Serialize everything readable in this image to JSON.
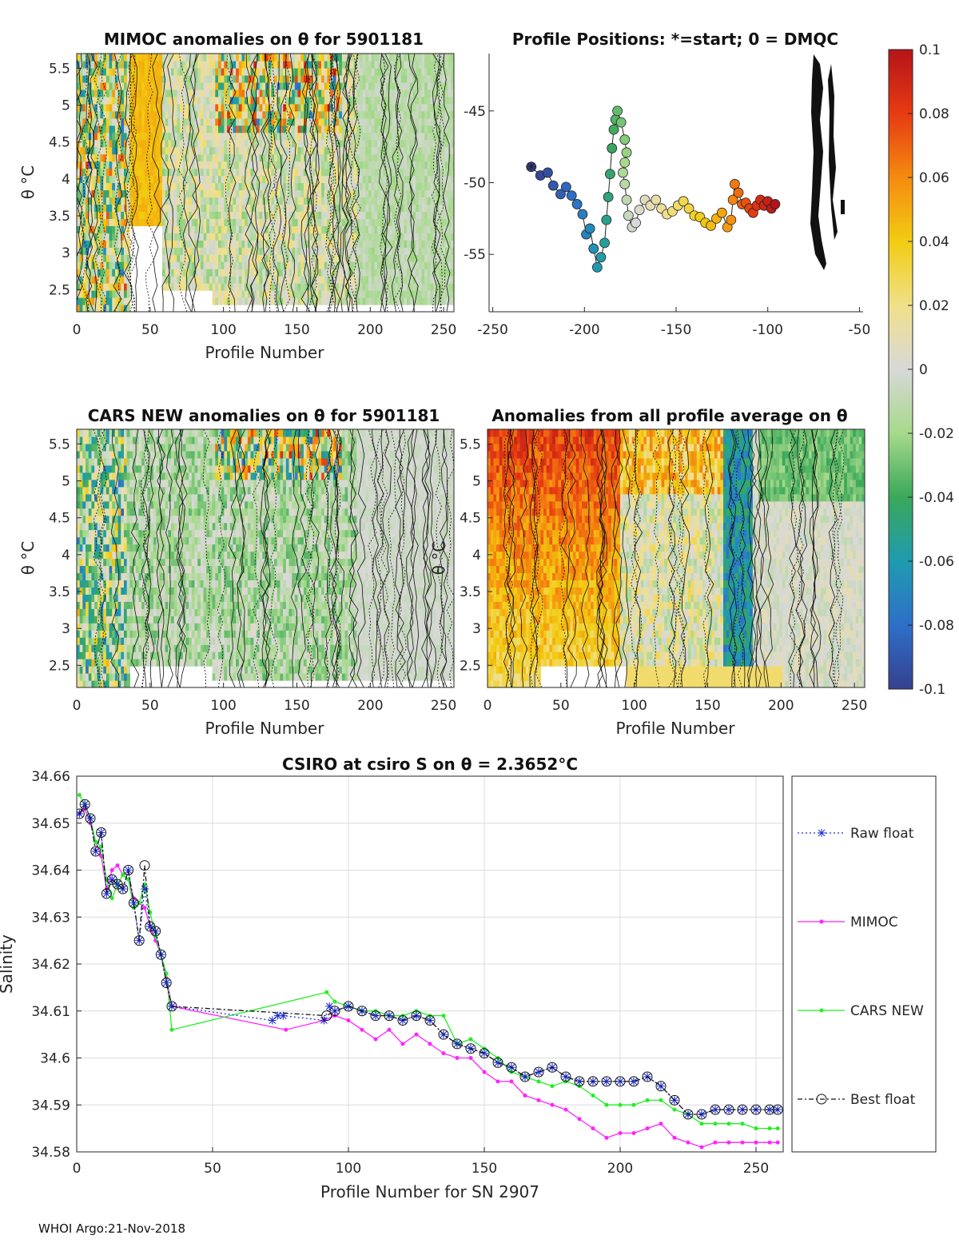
{
  "footer": "WHOI Argo:21-Nov-2018",
  "chart_data": [
    {
      "type": "heatmap",
      "id": "mimoc",
      "title": "MIMOC anomalies on θ  for 5901181",
      "xlabel": "Profile Number",
      "ylabel": "θ °C",
      "xlim": [
        0,
        257
      ],
      "ylim": [
        2.2,
        5.7
      ],
      "xticks": [
        0,
        50,
        100,
        150,
        200,
        250
      ],
      "yticks": [
        2.5,
        3,
        3.5,
        4,
        4.5,
        5,
        5.5
      ],
      "ytick_labels": [
        "2.5",
        "3",
        "3.5",
        "4",
        "4.5",
        "5",
        "5.5"
      ],
      "clim": [
        -0.1,
        0.1
      ]
    },
    {
      "type": "scatter",
      "id": "positions",
      "title": "Profile Positions: *=start; 0 = DMQC",
      "xlim": [
        -252,
        -48
      ],
      "ylim": [
        -59,
        -41
      ],
      "xticks": [
        -250,
        -200,
        -150,
        -100,
        -50
      ],
      "yticks": [
        -55,
        -50,
        -45
      ],
      "ytick_labels": [
        "-55",
        "-50",
        "-45"
      ],
      "track": [
        [
          -229,
          -48.9
        ],
        [
          -224,
          -49.5
        ],
        [
          -220,
          -49.3
        ],
        [
          -217,
          -50.2
        ],
        [
          -213,
          -50.8
        ],
        [
          -210,
          -50.3
        ],
        [
          -207,
          -50.9
        ],
        [
          -204,
          -51.5
        ],
        [
          -201,
          -52.2
        ],
        [
          -199,
          -53.6
        ],
        [
          -197,
          -53.2
        ],
        [
          -195,
          -54.6
        ],
        [
          -193,
          -55.9
        ],
        [
          -191,
          -55.2
        ],
        [
          -189,
          -54.2
        ],
        [
          -188,
          -52.6
        ],
        [
          -187,
          -51.0
        ],
        [
          -186,
          -49.4
        ],
        [
          -185,
          -47.6
        ],
        [
          -184,
          -46.3
        ],
        [
          -183,
          -45.6
        ],
        [
          -182,
          -45.0
        ],
        [
          -180,
          -45.8
        ],
        [
          -178,
          -47.0
        ],
        [
          -177,
          -47.9
        ],
        [
          -178,
          -48.6
        ],
        [
          -179,
          -49.3
        ],
        [
          -178,
          -50.1
        ],
        [
          -177,
          -51.2
        ],
        [
          -176,
          -52.3
        ],
        [
          -174,
          -53.1
        ],
        [
          -172,
          -52.8
        ],
        [
          -170,
          -51.9
        ],
        [
          -167,
          -51.2
        ],
        [
          -164,
          -51.6
        ],
        [
          -161,
          -51.2
        ],
        [
          -158,
          -51.8
        ],
        [
          -155,
          -52.2
        ],
        [
          -152,
          -52.0
        ],
        [
          -149,
          -51.6
        ],
        [
          -146,
          -51.3
        ],
        [
          -143,
          -51.8
        ],
        [
          -140,
          -52.3
        ],
        [
          -137,
          -52.4
        ],
        [
          -134,
          -52.8
        ],
        [
          -131,
          -53.0
        ],
        [
          -128,
          -52.5
        ],
        [
          -125,
          -52.1
        ],
        [
          -122,
          -53.1
        ],
        [
          -120,
          -52.6
        ],
        [
          -119,
          -51.2
        ],
        [
          -118,
          -50.1
        ],
        [
          -116,
          -50.7
        ],
        [
          -114,
          -51.5
        ],
        [
          -112,
          -51.4
        ],
        [
          -110,
          -51.8
        ],
        [
          -108,
          -52.1
        ],
        [
          -106,
          -51.6
        ],
        [
          -104,
          -51.2
        ],
        [
          -102,
          -51.6
        ],
        [
          -100,
          -51.3
        ],
        [
          -98,
          -51.8
        ],
        [
          -96,
          -51.5
        ]
      ],
      "clim": [
        -0.1,
        0.1
      ]
    },
    {
      "type": "heatmap",
      "id": "cars",
      "title": "CARS NEW anomalies on θ for 5901181",
      "xlabel": "Profile Number",
      "ylabel": "θ °C",
      "xlim": [
        0,
        257
      ],
      "ylim": [
        2.2,
        5.7
      ],
      "xticks": [
        0,
        50,
        100,
        150,
        200,
        250
      ],
      "yticks": [
        2.5,
        3,
        3.5,
        4,
        4.5,
        5,
        5.5
      ],
      "ytick_labels": [
        "2.5",
        "3",
        "3.5",
        "4",
        "4.5",
        "5",
        "5.5"
      ],
      "clim": [
        -0.1,
        0.1
      ]
    },
    {
      "type": "heatmap",
      "id": "allavg",
      "title": "Anomalies from all profile average on θ",
      "xlabel": "Profile Number",
      "ylabel": "θ °C",
      "xlim": [
        0,
        257
      ],
      "ylim": [
        2.2,
        5.7
      ],
      "xticks": [
        0,
        50,
        100,
        150,
        200,
        250
      ],
      "yticks": [
        2.5,
        3,
        3.5,
        4,
        4.5,
        5,
        5.5
      ],
      "ytick_labels": [
        "2.5",
        "3",
        "3.5",
        "4",
        "4.5",
        "5",
        "5.5"
      ],
      "clim": [
        -0.1,
        0.1
      ]
    },
    {
      "type": "colorbar",
      "id": "colorbar",
      "ticks": [
        -0.1,
        -0.08,
        -0.06,
        -0.04,
        -0.02,
        0,
        0.02,
        0.04,
        0.06,
        0.08,
        0.1
      ],
      "tick_labels": [
        "-0.1",
        "-0.08",
        "-0.06",
        "-0.04",
        "-0.02",
        "0",
        "0.02",
        "0.04",
        "0.06",
        "0.08",
        "0.1"
      ]
    },
    {
      "type": "line",
      "id": "salinity",
      "title": "CSIRO at csiro S on θ = 2.3652°C",
      "xlabel": "Profile Number for SN 2907",
      "ylabel": "Salinity",
      "xlim": [
        0,
        260
      ],
      "ylim": [
        34.58,
        34.66
      ],
      "xticks": [
        0,
        50,
        100,
        150,
        200,
        250
      ],
      "yticks": [
        34.58,
        34.59,
        34.6,
        34.61,
        34.62,
        34.63,
        34.64,
        34.65,
        34.66
      ],
      "ytick_labels": [
        "34.58",
        "34.59",
        "34.6",
        "34.61",
        "34.62",
        "34.63",
        "34.64",
        "34.65",
        "34.66"
      ],
      "legend": [
        "Raw float",
        "MIMOC",
        "CARS NEW",
        "Best float"
      ],
      "series": [
        {
          "name": "Raw float",
          "color": "#1f2fd6",
          "x": [
            1,
            3,
            5,
            7,
            9,
            11,
            13,
            15,
            17,
            19,
            21,
            23,
            25,
            27,
            29,
            31,
            33,
            35,
            72,
            74,
            76,
            91,
            93,
            95,
            100,
            105,
            110,
            115,
            120,
            125,
            130,
            135,
            140,
            145,
            150,
            155,
            160,
            165,
            170,
            175,
            180,
            185,
            190,
            195,
            200,
            205,
            210,
            215,
            220,
            225,
            230,
            235,
            240,
            245,
            250,
            255,
            258
          ],
          "y": [
            34.652,
            34.654,
            34.651,
            34.644,
            34.648,
            34.635,
            34.638,
            34.637,
            34.636,
            34.64,
            34.633,
            34.625,
            34.636,
            34.628,
            34.627,
            34.622,
            34.616,
            34.611,
            34.608,
            34.609,
            34.609,
            34.608,
            34.611,
            34.61,
            34.611,
            34.61,
            34.609,
            34.609,
            34.608,
            34.609,
            34.608,
            34.605,
            34.603,
            34.602,
            34.601,
            34.599,
            34.598,
            34.596,
            34.597,
            34.598,
            34.596,
            34.595,
            34.595,
            34.595,
            34.595,
            34.595,
            34.596,
            34.594,
            34.591,
            34.588,
            34.588,
            34.589,
            34.589,
            34.589,
            34.589,
            34.589,
            34.589
          ]
        },
        {
          "name": "MIMOC",
          "color": "#ff22ff",
          "x": [
            1,
            3,
            5,
            7,
            9,
            11,
            13,
            15,
            17,
            19,
            21,
            23,
            25,
            27,
            29,
            31,
            33,
            35,
            77,
            91,
            95,
            100,
            105,
            110,
            115,
            120,
            125,
            130,
            135,
            140,
            145,
            150,
            155,
            160,
            165,
            170,
            175,
            180,
            185,
            190,
            195,
            200,
            205,
            210,
            215,
            220,
            225,
            230,
            235,
            240,
            245,
            250,
            255,
            258
          ],
          "y": [
            34.652,
            34.653,
            34.65,
            34.646,
            34.643,
            34.636,
            34.64,
            34.641,
            34.639,
            34.638,
            34.634,
            34.633,
            34.632,
            34.628,
            34.625,
            34.622,
            34.617,
            34.611,
            34.606,
            34.608,
            34.609,
            34.608,
            34.606,
            34.604,
            34.606,
            34.603,
            34.605,
            34.603,
            34.601,
            34.6,
            34.6,
            34.597,
            34.595,
            34.595,
            34.592,
            34.591,
            34.59,
            34.589,
            34.587,
            34.585,
            34.583,
            34.584,
            34.584,
            34.585,
            34.586,
            34.583,
            34.582,
            34.581,
            34.582,
            34.582,
            34.582,
            34.582,
            34.582,
            34.582
          ]
        },
        {
          "name": "CARS NEW",
          "color": "#22ee22",
          "x": [
            1,
            3,
            5,
            7,
            9,
            11,
            13,
            15,
            17,
            19,
            21,
            23,
            25,
            27,
            29,
            31,
            33,
            35,
            92,
            95,
            100,
            105,
            110,
            115,
            120,
            125,
            130,
            135,
            140,
            145,
            150,
            155,
            160,
            165,
            170,
            175,
            180,
            185,
            190,
            195,
            200,
            205,
            210,
            215,
            220,
            225,
            230,
            235,
            240,
            245,
            250,
            255,
            258
          ],
          "y": [
            34.656,
            34.654,
            34.651,
            34.646,
            34.645,
            34.638,
            34.634,
            34.637,
            34.639,
            34.638,
            34.632,
            34.633,
            34.637,
            34.631,
            34.626,
            34.622,
            34.618,
            34.606,
            34.614,
            34.612,
            34.611,
            34.61,
            34.61,
            34.609,
            34.609,
            34.61,
            34.609,
            34.609,
            34.603,
            34.604,
            34.602,
            34.6,
            34.597,
            34.596,
            34.595,
            34.594,
            34.595,
            34.594,
            34.592,
            34.59,
            34.59,
            34.59,
            34.591,
            34.591,
            34.589,
            34.588,
            34.586,
            34.586,
            34.586,
            34.586,
            34.585,
            34.585,
            34.585
          ]
        },
        {
          "name": "Best float",
          "color": "#111111",
          "x": [
            1,
            3,
            5,
            7,
            9,
            11,
            13,
            15,
            17,
            19,
            21,
            23,
            25,
            27,
            29,
            31,
            33,
            35,
            92,
            95,
            100,
            105,
            110,
            115,
            120,
            125,
            130,
            135,
            140,
            145,
            150,
            155,
            160,
            165,
            170,
            175,
            180,
            185,
            190,
            195,
            200,
            205,
            210,
            215,
            220,
            225,
            230,
            235,
            240,
            245,
            250,
            255,
            258
          ],
          "y": [
            34.652,
            34.654,
            34.651,
            34.644,
            34.648,
            34.635,
            34.638,
            34.637,
            34.636,
            34.64,
            34.633,
            34.625,
            34.641,
            34.628,
            34.627,
            34.622,
            34.616,
            34.611,
            34.609,
            34.61,
            34.611,
            34.61,
            34.609,
            34.609,
            34.608,
            34.609,
            34.608,
            34.605,
            34.603,
            34.602,
            34.601,
            34.599,
            34.598,
            34.596,
            34.597,
            34.598,
            34.596,
            34.595,
            34.595,
            34.595,
            34.595,
            34.595,
            34.596,
            34.594,
            34.591,
            34.588,
            34.588,
            34.589,
            34.589,
            34.589,
            34.589,
            34.589,
            34.589
          ]
        }
      ]
    }
  ]
}
